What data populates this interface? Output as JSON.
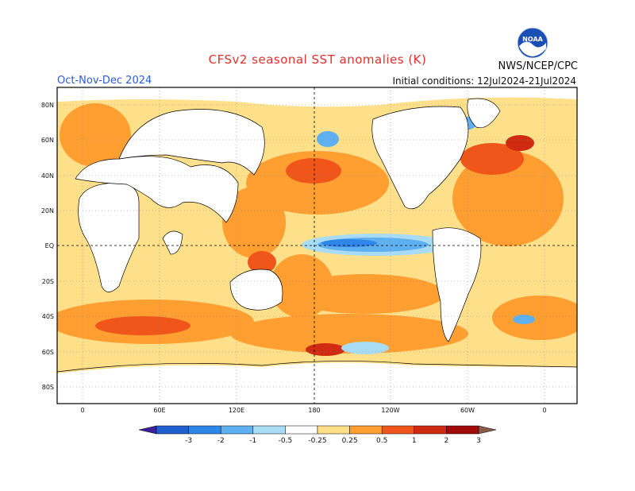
{
  "header": {
    "title": "CFSv2 seasonal SST anomalies (K)",
    "season": "Oct-Nov-Dec 2024",
    "initial_conditions": "Initial conditions: 12Jul2024-21Jul2024",
    "agency": "NWS/NCEP/CPC",
    "logo_text": "NOAA"
  },
  "map": {
    "lat_labels": [
      "80N",
      "60N",
      "40N",
      "20N",
      "EQ",
      "20S",
      "40S",
      "60S",
      "80S"
    ],
    "lon_labels": [
      "0",
      "60E",
      "120E",
      "180",
      "120W",
      "60W",
      "0"
    ]
  },
  "colorbar": {
    "labels": [
      "-3",
      "-2",
      "-1",
      "-0.5",
      "-0.25",
      "0.25",
      "0.5",
      "1",
      "2",
      "3"
    ],
    "colors": [
      "#3b1f9c",
      "#1f5fd0",
      "#2f86e8",
      "#5fb0f0",
      "#a8dcf5",
      "#ffffff",
      "#ffe08a",
      "#ff9f32",
      "#f0561a",
      "#d02a12",
      "#a00a0a",
      "#8b5a4a"
    ]
  }
}
